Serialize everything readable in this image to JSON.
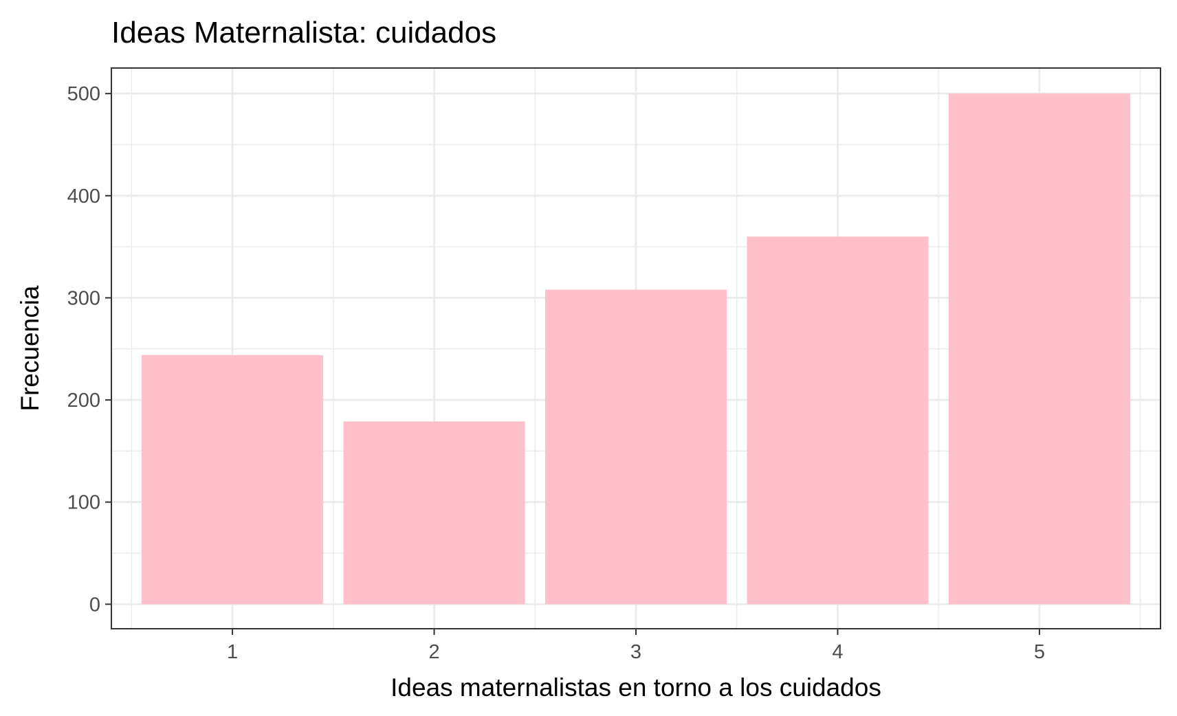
{
  "chart_data": {
    "type": "bar",
    "title": "Ideas Maternalista: cuidados",
    "xlabel": "Ideas maternalistas en torno a los cuidados",
    "ylabel": "Frecuencia",
    "categories": [
      "1",
      "2",
      "3",
      "4",
      "5"
    ],
    "values": [
      244,
      179,
      308,
      360,
      500
    ],
    "ylim": [
      -24,
      525
    ],
    "yticks": [
      0,
      100,
      200,
      300,
      400,
      500
    ],
    "grid": true,
    "legend": "none",
    "colors": {
      "bar": "#FFC0CB",
      "grid": "#EBEBEB",
      "border": "#333333",
      "tick_text": "#4D4D4D",
      "text": "#000000"
    }
  }
}
